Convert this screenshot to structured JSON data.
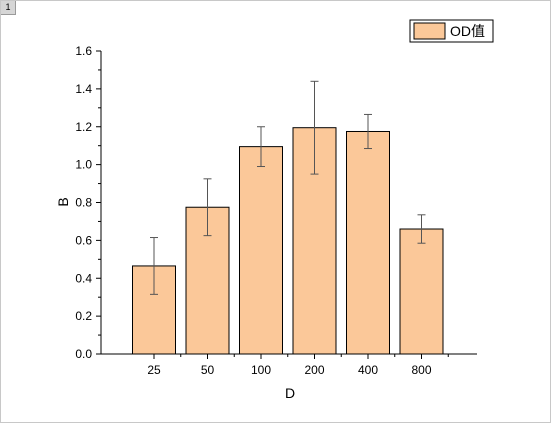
{
  "window": {
    "layer_label": "1"
  },
  "chart_data": {
    "type": "bar",
    "categories": [
      "25",
      "50",
      "100",
      "200",
      "400",
      "800"
    ],
    "series": [
      {
        "name": "OD值",
        "values": [
          0.465,
          0.775,
          1.095,
          1.195,
          1.175,
          0.66
        ],
        "errors": [
          0.15,
          0.15,
          0.105,
          0.245,
          0.09,
          0.075
        ]
      }
    ],
    "xlabel": "D",
    "ylabel": "B",
    "ylim": [
      0,
      1.6
    ],
    "yticks": [
      0.0,
      0.2,
      0.4,
      0.6,
      0.8,
      1.0,
      1.2,
      1.4,
      1.6
    ],
    "ytick_labels": [
      "0.0",
      "0.2",
      "0.4",
      "0.6",
      "0.8",
      "1.0",
      "1.2",
      "1.4",
      "1.6"
    ],
    "grid": false,
    "legend_position": "top-right",
    "bar_color": "#FBC899",
    "bar_edge_color": "#000000"
  }
}
